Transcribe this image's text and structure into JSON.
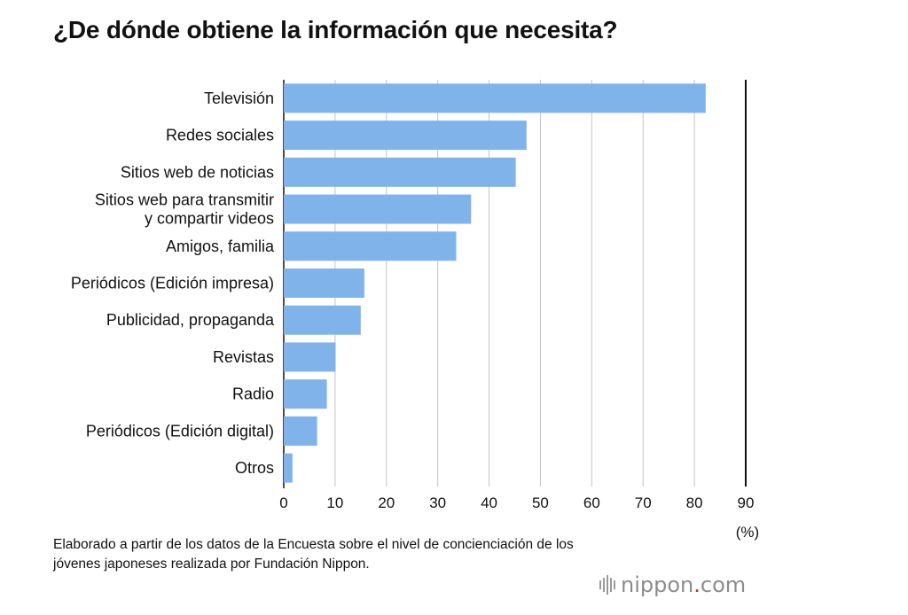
{
  "chart_data": {
    "type": "bar",
    "orientation": "horizontal",
    "title": "¿De dónde obtiene la información que necesita?",
    "categories": [
      [
        "Televisión"
      ],
      [
        "Redes sociales"
      ],
      [
        "Sitios web de noticias"
      ],
      [
        "Sitios web para transmitir",
        "y compartir videos"
      ],
      [
        "Amigos, familia"
      ],
      [
        "Periódicos (Edición impresa)"
      ],
      [
        "Publicidad, propaganda"
      ],
      [
        "Revistas"
      ],
      [
        "Radio"
      ],
      [
        "Periódicos (Edición digital)"
      ],
      [
        "Otros"
      ]
    ],
    "values": [
      82.2,
      47.3,
      45.2,
      36.5,
      33.6,
      15.7,
      15.0,
      10.1,
      8.4,
      6.5,
      1.7
    ],
    "xlim": [
      0,
      90
    ],
    "xticks": [
      0,
      10,
      20,
      30,
      40,
      50,
      60,
      70,
      80,
      90
    ],
    "xunit": "(%)",
    "grid": true,
    "bar_color": "#7fb3ea",
    "grid_color": "#c4c4c4"
  },
  "source_note": "Elaborado a partir de los datos de la Encuesta sobre el nivel de concienciación de los jóvenes japoneses realizada por Fundación Nippon.",
  "brand": {
    "name": "nippon",
    "dot": ".",
    "suffix": "com"
  }
}
